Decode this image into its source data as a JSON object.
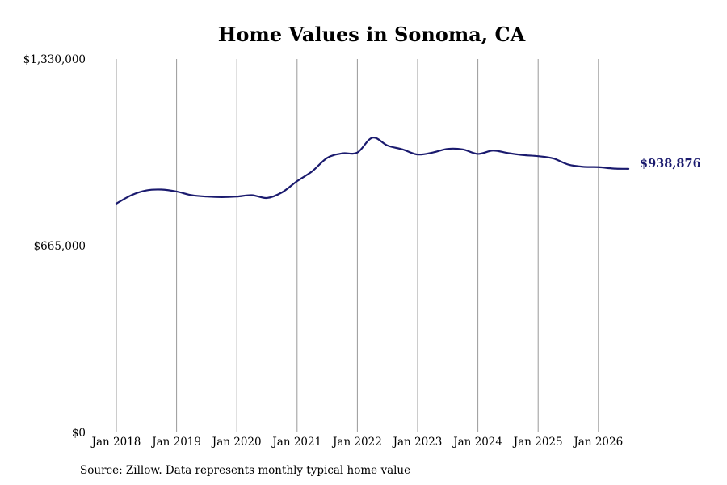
{
  "title": "Home Values in Sonoma, CA",
  "source": "Source: Zillow. Data represents monthly typical home value",
  "colors": {
    "line": "#1a1a6e",
    "grid": "#999999",
    "text": "#000000",
    "background": "#ffffff"
  },
  "chart_data": {
    "type": "line",
    "title": "Home Values in Sonoma, CA",
    "xlabel": "",
    "ylabel": "",
    "grid": "vertical lines at each year",
    "ylim": [
      0,
      1330000
    ],
    "y_ticks": [
      {
        "value": 0,
        "label": "$0"
      },
      {
        "value": 665000,
        "label": "$665,000"
      },
      {
        "value": 1330000,
        "label": "$1,330,000"
      }
    ],
    "x_ticks": [
      "Jan 2018",
      "Jan 2019",
      "Jan 2020",
      "Jan 2021",
      "Jan 2022",
      "Jan 2023",
      "Jan 2024",
      "Jan 2025",
      "Jan 2026"
    ],
    "end_label": "$938,876",
    "series": [
      {
        "x": [
          "2018-01",
          "2018-04",
          "2018-07",
          "2018-10",
          "2019-01",
          "2019-04",
          "2019-07",
          "2019-10",
          "2020-01",
          "2020-04",
          "2020-07",
          "2020-10",
          "2021-01",
          "2021-04",
          "2021-07",
          "2021-10",
          "2022-01",
          "2022-04",
          "2022-07",
          "2022-10",
          "2023-01",
          "2023-04",
          "2023-07",
          "2023-10",
          "2024-01",
          "2024-04",
          "2024-07",
          "2024-10",
          "2025-01",
          "2025-04",
          "2025-07",
          "2025-10",
          "2026-01",
          "2026-04",
          "2026-07"
        ],
        "values": [
          815000,
          845000,
          862000,
          865000,
          858000,
          845000,
          840000,
          838000,
          840000,
          845000,
          835000,
          855000,
          895000,
          930000,
          978000,
          994000,
          997000,
          1050000,
          1022000,
          1008000,
          990000,
          997000,
          1010000,
          1008000,
          992000,
          1004000,
          995000,
          988000,
          984000,
          976000,
          954000,
          946000,
          945000,
          940000,
          938876
        ]
      }
    ]
  }
}
